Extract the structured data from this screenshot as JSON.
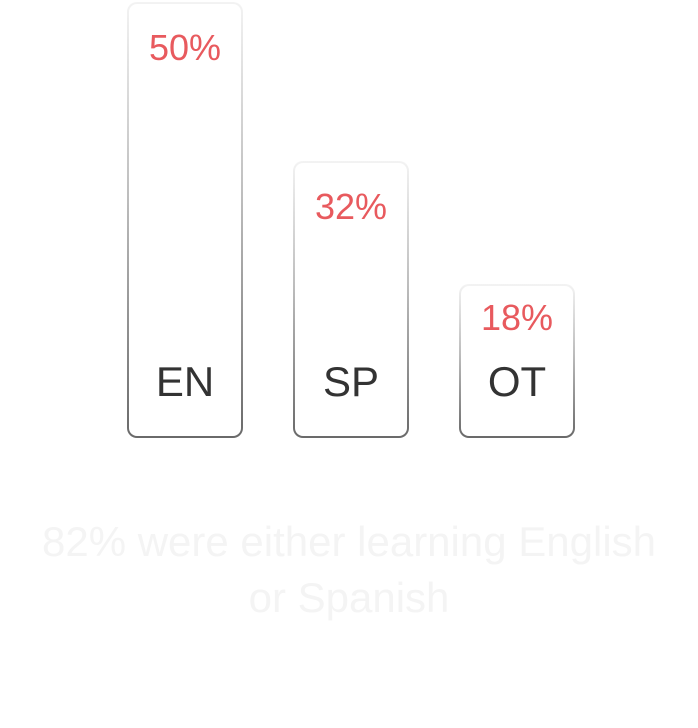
{
  "chart_data": {
    "type": "bar",
    "categories": [
      "EN",
      "SP",
      "OT"
    ],
    "values": [
      50,
      32,
      18
    ],
    "value_labels": [
      "50%",
      "32%",
      "18%"
    ],
    "title": "",
    "xlabel": "",
    "ylabel": "",
    "ylim": [
      0,
      50
    ],
    "grid": false,
    "colors": {
      "value_text": "#e85a5e",
      "category_text": "#333333",
      "bar_border_dark": "#6a6a6a",
      "bar_border_light": "#f3f3f3"
    }
  },
  "caption": {
    "line1": "82% were either learning English",
    "line2": "or Spanish"
  }
}
